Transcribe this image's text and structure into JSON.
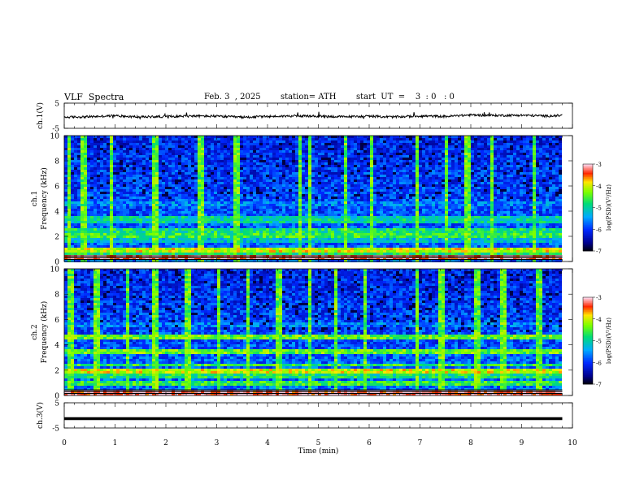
{
  "header": {
    "title": "VLF  Spectra",
    "date": "Feb. 3  , 2025",
    "station": "station= ATH",
    "start": "start  UT  =    3  : 0   : 0"
  },
  "chart_data": [
    {
      "type": "line",
      "panel": "ch1-waveform",
      "ylabel": "ch.1(V)",
      "yticks": [
        "5",
        "-5"
      ],
      "ylim": [
        -5,
        5
      ],
      "xlim": [
        0,
        10
      ],
      "data_end_min": 9.8,
      "x": [
        0,
        0.5,
        1,
        1.5,
        2,
        2.5,
        3,
        3.5,
        4,
        4.5,
        5,
        5.5,
        6,
        6.5,
        7,
        7.5,
        8,
        8.5,
        9,
        9.5,
        9.8
      ],
      "y": [
        -0.6,
        -0.4,
        0.0,
        -0.5,
        -0.3,
        -0.1,
        -0.2,
        -0.6,
        -0.3,
        -0.1,
        -0.2,
        -0.4,
        -0.2,
        -0.5,
        -0.1,
        -0.3,
        0.3,
        0.1,
        0.2,
        -0.1,
        0.1
      ],
      "color": "#000000"
    },
    {
      "type": "heatmap",
      "panel": "ch1-spectrogram",
      "ylabel_line1": "ch.1",
      "ylabel_line2": "Frequency (kHz)",
      "yticks": [
        "0",
        "2",
        "4",
        "6",
        "8",
        "10"
      ],
      "ylim": [
        0,
        10
      ],
      "xlim": [
        0,
        10
      ],
      "data_end_min": 9.8,
      "colorbar": {
        "label": "log(PSD)(V²/Hz)",
        "range": [
          -7,
          -3
        ],
        "ticks": [
          "-3",
          "-4",
          "-5",
          "-6",
          "-7"
        ]
      },
      "bands": [
        {
          "f": 0.3,
          "v": 0.95
        },
        {
          "f": 0.7,
          "v": 0.55
        },
        {
          "f": 0.95,
          "v": 0.75
        },
        {
          "f": 1.6,
          "v": 0.45
        },
        {
          "f": 2.1,
          "v": 0.6
        },
        {
          "f": 2.5,
          "v": 0.55
        },
        {
          "f": 3.2,
          "v": 0.5
        },
        {
          "f": 3.5,
          "v": 0.5
        },
        {
          "f": 4.6,
          "v": 0.35
        }
      ],
      "bursts_min": [
        0.05,
        0.35,
        0.9,
        1.75,
        2.65,
        3.35,
        4.6,
        4.8,
        5.5,
        6.0,
        6.9,
        7.5,
        7.9,
        8.4,
        9.2
      ]
    },
    {
      "type": "heatmap",
      "panel": "ch2-spectrogram",
      "ylabel_line1": "ch.2",
      "ylabel_line2": "Frequency (kHz)",
      "yticks": [
        "0",
        "2",
        "4",
        "6",
        "8",
        "10"
      ],
      "ylim": [
        0,
        10
      ],
      "xlim": [
        0,
        10
      ],
      "data_end_min": 9.8,
      "colorbar": {
        "label": "log(PSD)(V²/Hz)",
        "range": [
          -7,
          -3
        ],
        "ticks": [
          "-3",
          "-4",
          "-5",
          "-6",
          "-7"
        ]
      },
      "bands": [
        {
          "f": 0.2,
          "v": 0.95
        },
        {
          "f": 0.9,
          "v": 0.6
        },
        {
          "f": 1.5,
          "v": 0.55
        },
        {
          "f": 2.0,
          "v": 0.75
        },
        {
          "f": 2.4,
          "v": 0.6
        },
        {
          "f": 3.5,
          "v": 0.65
        },
        {
          "f": 4.6,
          "v": 0.65
        },
        {
          "f": 5.5,
          "v": 0.35
        }
      ],
      "bursts_min": [
        0.1,
        0.6,
        1.2,
        1.75,
        2.4,
        3.0,
        3.6,
        4.2,
        4.8,
        5.3,
        5.9,
        6.9,
        7.4,
        8.1,
        8.6,
        9.3
      ]
    },
    {
      "type": "line",
      "panel": "ch3-waveform",
      "ylabel": "ch.3(V)",
      "yticks": [
        "5",
        "-5"
      ],
      "ylim": [
        -5,
        5
      ],
      "xlim": [
        0,
        10
      ],
      "data_end_min": 9.8,
      "x": [
        0,
        9.8
      ],
      "y": [
        -1.3,
        -1.3
      ],
      "color": "#000000"
    }
  ],
  "xaxis": {
    "label": "Time  (min)",
    "ticks": [
      "0",
      "1",
      "2",
      "3",
      "4",
      "5",
      "6",
      "7",
      "8",
      "9",
      "10"
    ]
  }
}
